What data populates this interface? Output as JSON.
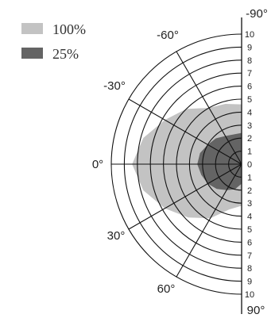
{
  "chart_data": {
    "type": "polar-area",
    "radial_ticks": [
      "0",
      "1",
      "2",
      "3",
      "4",
      "5",
      "6",
      "7",
      "8",
      "9",
      "10"
    ],
    "radial_max": 10,
    "angle_labels": [
      "-90°",
      "-60°",
      "-30°",
      "0°",
      "30°",
      "60°",
      "90°"
    ],
    "legend": [
      {
        "name": "100%",
        "color": "#c3c3c3"
      },
      {
        "name": "25%",
        "color": "#646464"
      }
    ],
    "series": [
      {
        "name": "100%",
        "color": "#c3c3c3",
        "points": [
          {
            "angle": -90,
            "r": 4.6
          },
          {
            "angle": -75,
            "r": 4.8
          },
          {
            "angle": -60,
            "r": 5.0
          },
          {
            "angle": -45,
            "r": 6.0
          },
          {
            "angle": -30,
            "r": 6.8
          },
          {
            "angle": -15,
            "r": 7.8
          },
          {
            "angle": 0,
            "r": 8.4
          },
          {
            "angle": 15,
            "r": 7.8
          },
          {
            "angle": 30,
            "r": 6.8
          },
          {
            "angle": 45,
            "r": 5.8
          },
          {
            "angle": 60,
            "r": 4.8
          },
          {
            "angle": 75,
            "r": 3.6
          },
          {
            "angle": 90,
            "r": 3.2
          }
        ]
      },
      {
        "name": "25%",
        "color": "#646464",
        "points": [
          {
            "angle": -90,
            "r": 2.4
          },
          {
            "angle": -60,
            "r": 2.5
          },
          {
            "angle": -45,
            "r": 2.8
          },
          {
            "angle": -30,
            "r": 3.0
          },
          {
            "angle": -15,
            "r": 3.3
          },
          {
            "angle": 0,
            "r": 3.4
          },
          {
            "angle": 15,
            "r": 3.2
          },
          {
            "angle": 30,
            "r": 3.0
          },
          {
            "angle": 45,
            "r": 2.7
          },
          {
            "angle": 60,
            "r": 2.3
          },
          {
            "angle": 75,
            "r": 2.0
          },
          {
            "angle": 90,
            "r": 1.5
          }
        ]
      }
    ]
  }
}
